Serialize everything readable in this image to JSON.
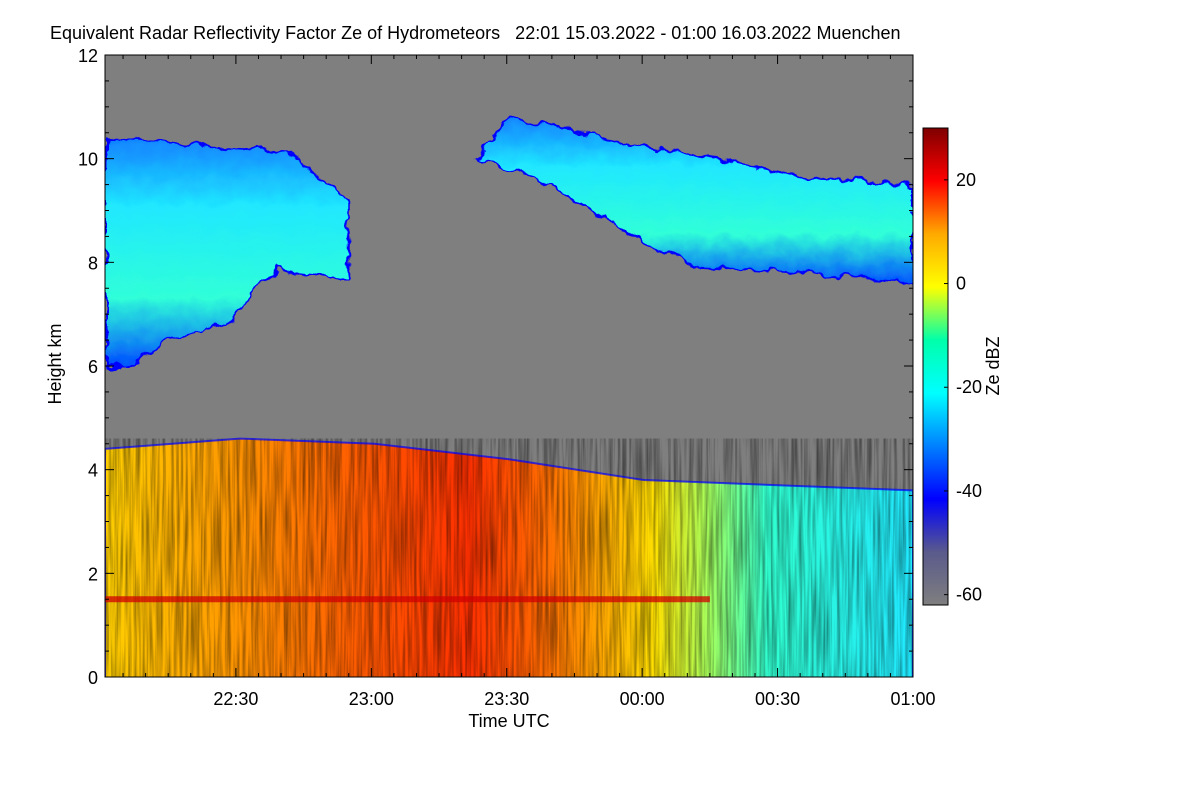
{
  "chart_data": {
    "type": "heatmap",
    "title": "Equivalent Radar Reflectivity Factor Ze of Hydrometeors   22:01 15.03.2022 - 01:00 16.03.2022 Muenchen",
    "xlabel": "Time UTC",
    "ylabel": "Height km",
    "x_ticks": [
      "22:30",
      "23:00",
      "23:30",
      "00:00",
      "00:30",
      "01:00"
    ],
    "x_tick_minutes": [
      30,
      60,
      90,
      120,
      150,
      180
    ],
    "x_range_minutes": [
      1,
      180
    ],
    "y_ticks": [
      0,
      2,
      4,
      6,
      8,
      10,
      12
    ],
    "ylim": [
      0,
      12
    ],
    "colorbar": {
      "label": "Ze dBZ",
      "ticks": [
        20,
        0,
        -20,
        -40,
        -60
      ],
      "range": [
        -62,
        30
      ],
      "colormap": [
        "#7f0000",
        "#ff0000",
        "#ffaa00",
        "#ffff00",
        "#00ffaa",
        "#00ffff",
        "#0080ff",
        "#0000ff",
        "#5a5a8c",
        "#7f7f7f"
      ]
    },
    "background_color": "#7f7f7f",
    "features": [
      {
        "layer": "precipitation",
        "time_start": "22:01",
        "time_end": "01:00",
        "top_km": [
          4.4,
          4.6,
          4.5,
          4.2,
          3.8,
          3.7,
          3.6
        ],
        "ze_dbz_range": [
          -25,
          28
        ]
      },
      {
        "layer": "melting layer (bright band)",
        "height_km": 1.5,
        "time_end": "00:15",
        "ze_dbz": 25
      },
      {
        "layer": "ice cloud",
        "time_start": "22:01",
        "time_end": "22:55",
        "base_km": 6.0,
        "top_km": 10.4,
        "ze_dbz_range": [
          -35,
          -15
        ]
      },
      {
        "layer": "ice cloud",
        "time_start": "23:23",
        "time_end": "01:00",
        "base_km": 7.6,
        "top_km": 10.8,
        "ze_dbz_range": [
          -40,
          -20
        ]
      }
    ]
  }
}
